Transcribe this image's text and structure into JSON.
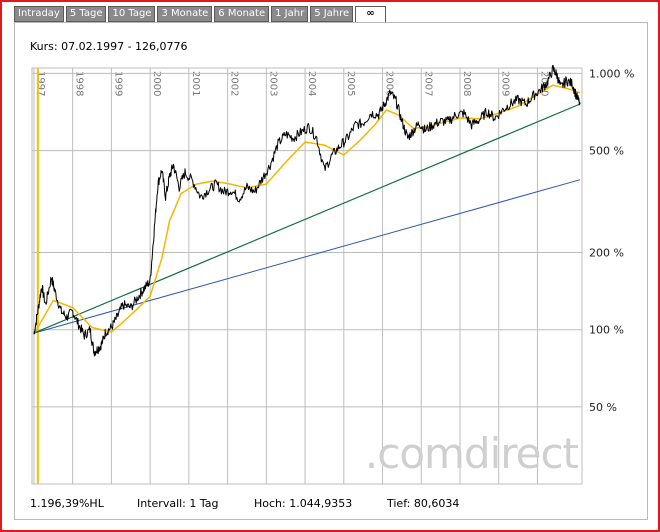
{
  "tabs": [
    "Intraday",
    "5 Tage",
    "10 Tage",
    "3 Monate",
    "6 Monate",
    "1 Jahr",
    "5 Jahre",
    "∞"
  ],
  "active_tab": "∞",
  "kurs_label": "Kurs: 07.02.1997 - 126,0776",
  "watermark": ".comdirect",
  "footer": {
    "performance": "1.196,39%HL",
    "intervall": "Intervall: 1 Tag",
    "hoch": "Hoch: 1.044,9353",
    "tief": "Tief: 80,6034"
  },
  "colors": {
    "price": "#000000",
    "moving_average": "#f2b800",
    "trend_green": "#0f6e3f",
    "trend_blue": "#2a58b0",
    "marker": "#f2c200",
    "grid": "#bdbdbd",
    "border": "#e0191a"
  },
  "chart_data": {
    "type": "line",
    "yscale": "log",
    "ylim": [
      25,
      1050
    ],
    "ytick_labels": [
      "1.000 %",
      "500 %",
      "200 %",
      "100 %",
      "50 %"
    ],
    "ytick_values": [
      1000,
      500,
      200,
      100,
      50
    ],
    "xtick_labels": [
      "1997",
      "1998",
      "1999",
      "2000",
      "2001",
      "2002",
      "2003",
      "2004",
      "2005",
      "2006",
      "2007",
      "2008",
      "2009",
      "2010"
    ],
    "xlim": [
      1996.95,
      2011.15
    ],
    "marker_x": 1997.1,
    "series": [
      {
        "role": "price",
        "x": [
          1997.0,
          1997.1,
          1997.2,
          1997.3,
          1997.45,
          1997.55,
          1997.7,
          1997.85,
          1998.0,
          1998.15,
          1998.3,
          1998.45,
          1998.55,
          1998.65,
          1998.75,
          1998.85,
          1999.0,
          1999.15,
          1999.3,
          1999.5,
          1999.7,
          1999.85,
          2000.0,
          2000.1,
          2000.2,
          2000.3,
          2000.4,
          2000.5,
          2000.6,
          2000.75,
          2000.9,
          2001.1,
          2001.3,
          2001.5,
          2001.7,
          2001.9,
          2002.1,
          2002.3,
          2002.5,
          2002.7,
          2002.9,
          2003.1,
          2003.3,
          2003.5,
          2003.7,
          2003.9,
          2004.1,
          2004.3,
          2004.5,
          2004.7,
          2004.9,
          2005.1,
          2005.3,
          2005.5,
          2005.7,
          2005.9,
          2006.05,
          2006.2,
          2006.35,
          2006.5,
          2006.65,
          2006.8,
          2006.95,
          2007.1,
          2007.3,
          2007.5,
          2007.7,
          2007.9,
          2008.1,
          2008.3,
          2008.5,
          2008.7,
          2008.9,
          2009.1,
          2009.3,
          2009.5,
          2009.7,
          2009.9,
          2010.1,
          2010.25,
          2010.4,
          2010.5,
          2010.6,
          2010.75,
          2010.9,
          2011.0,
          2011.1
        ],
        "values": [
          96,
          118,
          148,
          125,
          160,
          140,
          118,
          112,
          118,
          105,
          95,
          100,
          82,
          84,
          88,
          98,
          102,
          112,
          125,
          122,
          135,
          145,
          155,
          240,
          370,
          420,
          330,
          395,
          440,
          360,
          410,
          380,
          330,
          350,
          370,
          345,
          350,
          325,
          360,
          345,
          390,
          440,
          530,
          580,
          560,
          590,
          620,
          560,
          420,
          480,
          520,
          560,
          630,
          640,
          700,
          690,
          760,
          840,
          780,
          650,
          560,
          600,
          640,
          600,
          630,
          650,
          650,
          690,
          700,
          630,
          660,
          710,
          670,
          720,
          760,
          790,
          760,
          820,
          870,
          920,
          1040,
          990,
          880,
          940,
          910,
          820,
          760
        ]
      },
      {
        "role": "moving_average",
        "x": [
          1997.0,
          1997.5,
          1998.0,
          1998.5,
          1999.0,
          1999.3,
          1999.6,
          2000.0,
          2000.3,
          2000.5,
          2000.8,
          2001.2,
          2001.6,
          2002.0,
          2002.5,
          2003.0,
          2003.5,
          2004.0,
          2004.5,
          2005.0,
          2005.4,
          2005.8,
          2006.1,
          2006.4,
          2006.8,
          2007.2,
          2007.6,
          2008.0,
          2008.5,
          2009.0,
          2009.5,
          2010.0,
          2010.4,
          2010.8,
          2011.1
        ],
        "values": [
          96,
          130,
          122,
          102,
          98,
          107,
          118,
          135,
          190,
          265,
          340,
          370,
          380,
          372,
          358,
          370,
          450,
          540,
          525,
          480,
          545,
          630,
          720,
          690,
          610,
          620,
          645,
          670,
          665,
          700,
          745,
          830,
          900,
          870,
          840
        ]
      },
      {
        "role": "trend_green",
        "x": [
          1997.0,
          2011.1
        ],
        "values": [
          97,
          760
        ]
      },
      {
        "role": "trend_blue",
        "x": [
          1997.0,
          2011.1
        ],
        "values": [
          97,
          385
        ]
      }
    ]
  }
}
